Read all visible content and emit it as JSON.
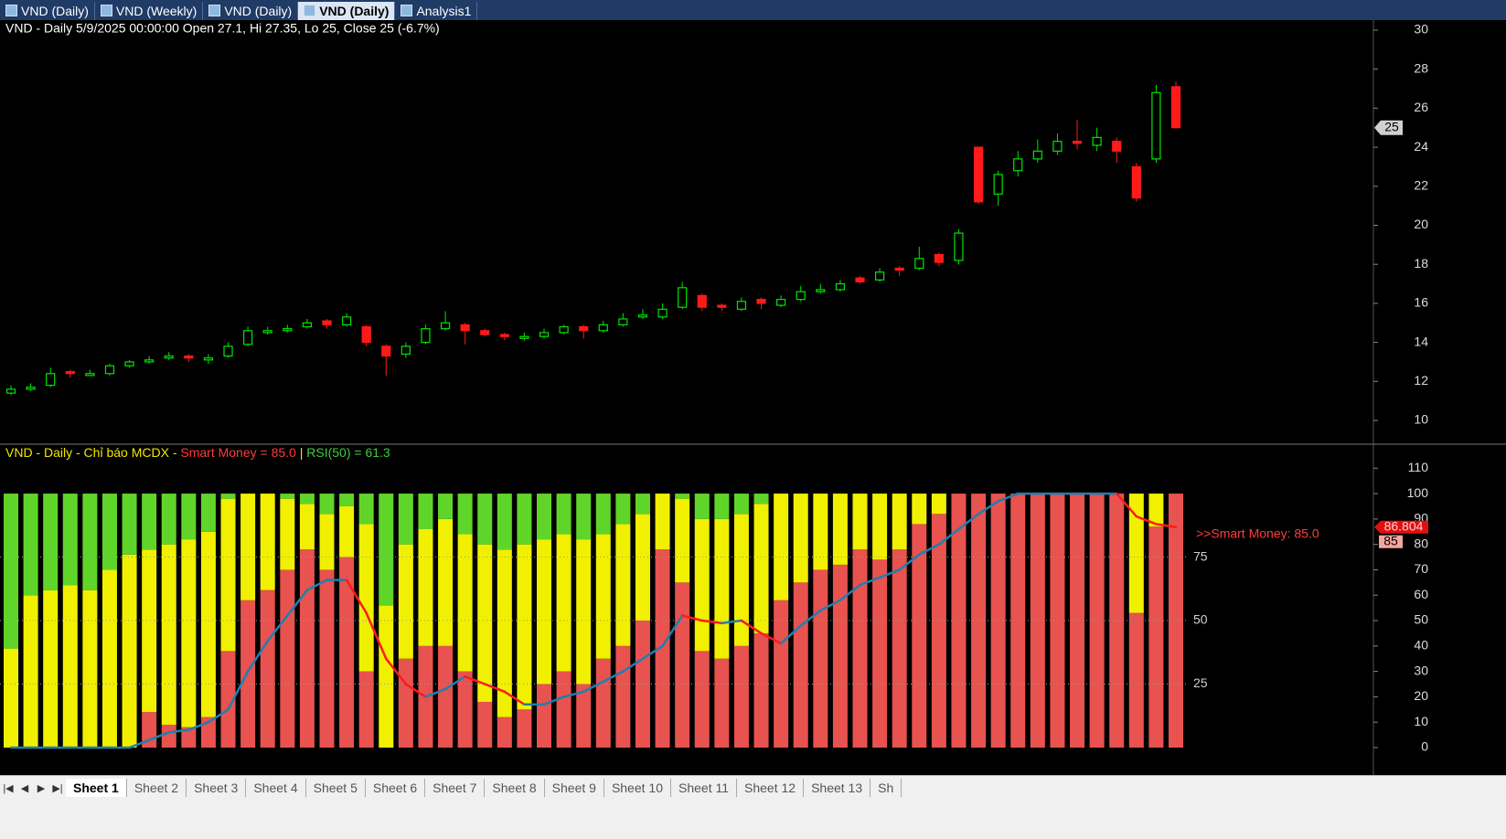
{
  "tabs": [
    "VND (Daily)",
    "VND (Weekly)",
    "VND (Daily)",
    "VND (Daily)",
    "Analysis1"
  ],
  "active_tab": 3,
  "chart_data": [
    {
      "type": "candlestick",
      "title": "VND - Daily 5/9/2025 00:00:00 Open 27.1, Hi 27.35, Lo 25, Close 25 (-6.7%)",
      "open": [
        11.4,
        11.6,
        11.8,
        12.5,
        12.3,
        12.4,
        12.8,
        13.0,
        13.2,
        13.3,
        13.1,
        13.3,
        13.9,
        14.5,
        14.6,
        14.8,
        15.1,
        14.9,
        14.8,
        13.8,
        13.4,
        14.0,
        14.7,
        14.9,
        14.6,
        14.4,
        14.2,
        14.3,
        14.5,
        14.8,
        14.6,
        14.9,
        15.3,
        15.3,
        15.8,
        16.4,
        15.9,
        15.7,
        16.2,
        15.9,
        16.2,
        16.6,
        16.7,
        17.3,
        17.2,
        17.8,
        17.8,
        18.5,
        18.2,
        24.0,
        21.6,
        22.8,
        23.4,
        23.8,
        24.3,
        24.1,
        24.3,
        23.0,
        23.4,
        27.1
      ],
      "high": [
        11.8,
        11.9,
        12.7,
        12.6,
        12.6,
        12.9,
        13.1,
        13.3,
        13.5,
        13.4,
        13.4,
        14.0,
        14.8,
        14.8,
        14.9,
        15.2,
        15.2,
        15.5,
        14.9,
        13.9,
        14.0,
        14.9,
        15.6,
        15.0,
        14.7,
        14.5,
        14.5,
        14.7,
        14.9,
        14.9,
        15.1,
        15.5,
        15.7,
        16.0,
        17.1,
        16.5,
        16.0,
        16.3,
        16.3,
        16.4,
        16.9,
        17.0,
        17.2,
        17.4,
        17.8,
        17.9,
        18.9,
        18.6,
        19.8,
        24.0,
        22.8,
        23.8,
        24.4,
        24.7,
        25.4,
        25.0,
        24.5,
        23.2,
        27.2,
        27.35
      ],
      "low": [
        11.3,
        11.5,
        11.7,
        12.2,
        12.3,
        12.3,
        12.7,
        12.9,
        13.1,
        13.0,
        12.9,
        13.2,
        13.8,
        14.4,
        14.5,
        14.7,
        14.7,
        14.8,
        13.8,
        12.3,
        13.2,
        13.9,
        14.6,
        13.9,
        14.3,
        14.1,
        14.1,
        14.2,
        14.4,
        14.2,
        14.5,
        14.8,
        15.2,
        15.2,
        15.7,
        15.6,
        15.6,
        15.6,
        15.7,
        15.8,
        16.1,
        16.5,
        16.6,
        17.0,
        17.1,
        17.4,
        17.7,
        17.9,
        18.0,
        21.1,
        21.0,
        22.5,
        23.2,
        23.6,
        23.9,
        23.8,
        23.2,
        21.2,
        23.2,
        25
      ],
      "close": [
        11.6,
        11.7,
        12.4,
        12.4,
        12.4,
        12.8,
        13.0,
        13.1,
        13.3,
        13.2,
        13.2,
        13.8,
        14.6,
        14.6,
        14.7,
        15.0,
        14.9,
        15.3,
        14.0,
        13.3,
        13.8,
        14.7,
        15.0,
        14.6,
        14.4,
        14.3,
        14.3,
        14.5,
        14.8,
        14.6,
        14.9,
        15.2,
        15.4,
        15.7,
        16.8,
        15.8,
        15.8,
        16.1,
        16.0,
        16.2,
        16.6,
        16.7,
        17.0,
        17.1,
        17.6,
        17.7,
        18.3,
        18.1,
        19.6,
        21.2,
        22.6,
        23.4,
        23.8,
        24.3,
        24.2,
        24.5,
        23.8,
        21.4,
        26.8,
        25
      ],
      "up_color": "#00e600",
      "down_color": "#ff1a1a",
      "ylim": [
        8.83,
        30.42
      ],
      "yticks": [
        10,
        12,
        14,
        16,
        18,
        20,
        22,
        24,
        26,
        28,
        30
      ]
    },
    {
      "type": "stacked-bar-line",
      "legend_texts": [
        {
          "text": "VND - Daily - Chỉ báo MCDX - ",
          "color": "#f2e600"
        },
        {
          "text": "Smart Money = 85.0",
          "color": "#ff3b3b"
        },
        {
          "text": " | ",
          "color": "#f2e600"
        },
        {
          "text": "RSI(50) = 61.3",
          "color": "#3ecf3e"
        }
      ],
      "series": [
        {
          "color": "#e8524f",
          "values": [
            0,
            0,
            0,
            0,
            0,
            0,
            0,
            14,
            9,
            8,
            12,
            38,
            58,
            62,
            70,
            78,
            70,
            75,
            30,
            0,
            35,
            40,
            40,
            30,
            18,
            12,
            15,
            25,
            30,
            25,
            35,
            40,
            50,
            78,
            65,
            38,
            35,
            40,
            45,
            58,
            65,
            70,
            72,
            78,
            74,
            78,
            88,
            92,
            100,
            100,
            100,
            100,
            100,
            100,
            100,
            100,
            100,
            53,
            87,
            100
          ]
        },
        {
          "color": "#f0f000",
          "values": [
            39,
            60,
            62,
            64,
            62,
            70,
            76,
            64,
            71,
            74,
            73,
            60,
            42,
            38,
            28,
            18,
            22,
            20,
            58,
            56,
            45,
            46,
            50,
            54,
            62,
            66,
            65,
            57,
            54,
            57,
            49,
            48,
            42,
            22,
            33,
            52,
            55,
            52,
            51,
            42,
            35,
            30,
            28,
            22,
            26,
            22,
            12,
            8,
            0,
            0,
            0,
            0,
            0,
            0,
            0,
            0,
            0,
            47,
            13,
            0
          ]
        },
        {
          "color": "#5fd52a",
          "values": [
            61,
            40,
            38,
            36,
            38,
            30,
            24,
            22,
            20,
            18,
            15,
            2,
            0,
            0,
            2,
            4,
            8,
            5,
            12,
            44,
            20,
            14,
            10,
            16,
            20,
            22,
            20,
            18,
            16,
            18,
            16,
            12,
            8,
            0,
            2,
            10,
            10,
            8,
            4,
            0,
            0,
            0,
            0,
            0,
            0,
            0,
            0,
            0,
            0,
            0,
            0,
            0,
            0,
            0,
            0,
            0,
            0,
            0,
            0,
            0
          ]
        }
      ],
      "line": {
        "up_color": "#1f7fb0",
        "down_color": "#ff1a1a",
        "values": [
          0,
          0,
          0,
          0,
          0,
          0,
          0,
          3,
          6,
          7,
          10,
          15,
          30,
          42,
          52,
          62,
          66,
          66,
          53,
          35,
          25,
          20,
          23,
          28,
          25,
          22,
          17,
          17,
          20,
          22,
          26,
          30,
          35,
          40,
          52,
          50,
          49,
          50,
          45,
          41,
          48,
          54,
          58,
          64,
          67,
          70,
          76,
          80,
          86,
          92,
          97,
          100,
          100,
          100,
          100,
          100,
          100,
          91,
          88,
          86.804
        ]
      },
      "annotation": ">>Smart Money: 85.0",
      "smart_money_tag": 85,
      "ylim": [
        -10.8,
        119.1
      ],
      "yticks": [
        0,
        10,
        20,
        30,
        40,
        50,
        60,
        70,
        80,
        90,
        100,
        110
      ],
      "inner_ticks": [
        25,
        50,
        75
      ]
    }
  ],
  "sheets": [
    "Sheet 1",
    "Sheet 2",
    "Sheet 3",
    "Sheet 4",
    "Sheet 5",
    "Sheet 6",
    "Sheet 7",
    "Sheet 8",
    "Sheet 9",
    "Sheet 10",
    "Sheet 11",
    "Sheet 12",
    "Sheet 13",
    "Sh"
  ]
}
